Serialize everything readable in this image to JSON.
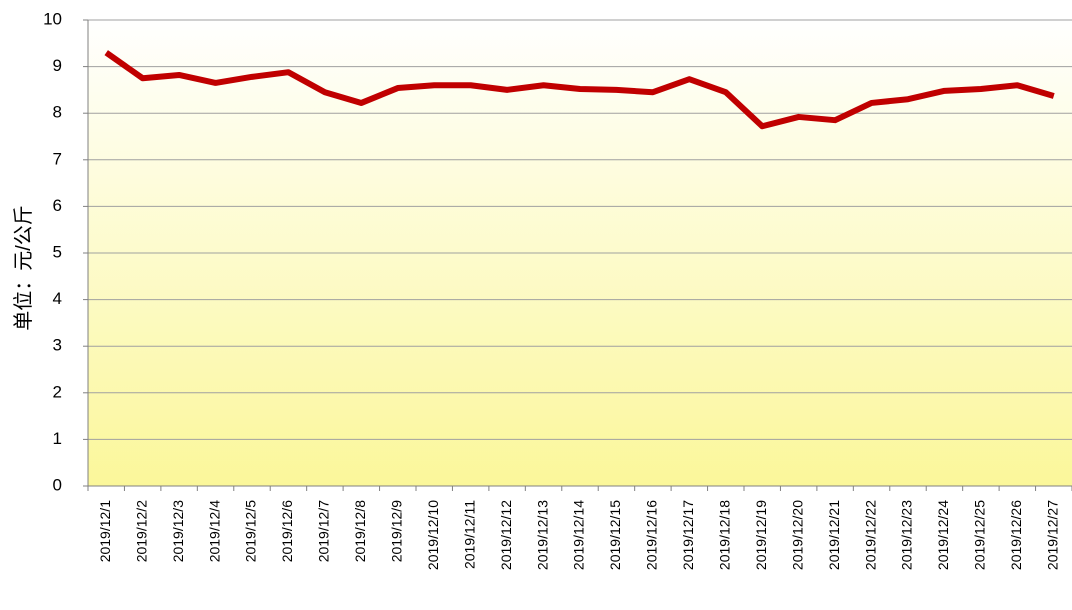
{
  "chart_data": {
    "type": "line",
    "y_label": "单位：元/公斤",
    "categories": [
      "2019/12/1",
      "2019/12/2",
      "2019/12/3",
      "2019/12/4",
      "2019/12/5",
      "2019/12/6",
      "2019/12/7",
      "2019/12/8",
      "2019/12/9",
      "2019/12/10",
      "2019/12/11",
      "2019/12/12",
      "2019/12/13",
      "2019/12/14",
      "2019/12/15",
      "2019/12/16",
      "2019/12/17",
      "2019/12/18",
      "2019/12/19",
      "2019/12/20",
      "2019/12/21",
      "2019/12/22",
      "2019/12/23",
      "2019/12/24",
      "2019/12/25",
      "2019/12/26",
      "2019/12/27"
    ],
    "values": [
      9.3,
      8.75,
      8.82,
      8.65,
      8.78,
      8.88,
      8.45,
      8.22,
      8.54,
      8.6,
      8.6,
      8.5,
      8.6,
      8.52,
      8.5,
      8.45,
      8.73,
      8.45,
      7.72,
      7.92,
      7.85,
      8.22,
      8.3,
      8.48,
      8.52,
      8.6,
      8.37
    ],
    "color": "#c00000",
    "ylim": [
      0,
      10
    ],
    "yticks": [
      0,
      1,
      2,
      3,
      4,
      5,
      6,
      7,
      8,
      9,
      10
    ],
    "grid": true
  }
}
